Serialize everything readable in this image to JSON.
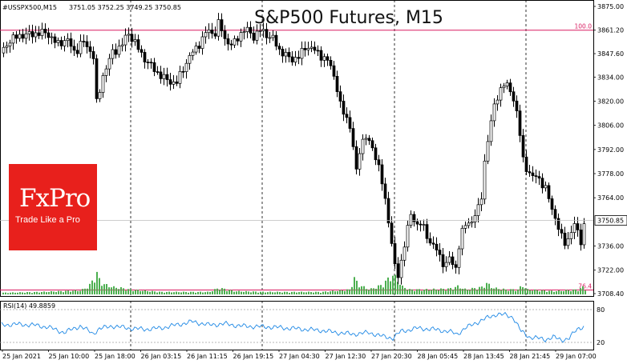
{
  "chart_data": [
    {
      "type": "candlestick",
      "symbol_label": "#USSPX500,M15",
      "ohlc_label": "3751.05 3752.25 3749.25 3750.85",
      "title": "S&P500 Futures, M15",
      "price_ticks": [
        "3875.00",
        "3861.20",
        "3847.60",
        "3834.00",
        "3820.00",
        "3806.00",
        "3792.00",
        "3778.00",
        "3764.00",
        "3750.85",
        "3736.00",
        "3722.00",
        "3708.40"
      ],
      "ylim": [
        3708.4,
        3875.0
      ],
      "current_price": "3750.85",
      "levels": [
        {
          "label": "100.0",
          "price": 3861.2,
          "color": "#d81b60"
        },
        {
          "label": "76.4",
          "price": 3710.5,
          "color": "#d81b60"
        }
      ],
      "session_starts": [
        "25 Jan 18:00",
        "26 Jan 19:15",
        "27 Jan 20:30",
        "28 Jan 21:45"
      ],
      "price_path": [
        [
          0,
          3848
        ],
        [
          10,
          3855
        ],
        [
          22,
          3858
        ],
        [
          40,
          3859
        ],
        [
          56,
          3860
        ],
        [
          62,
          3857
        ],
        [
          70,
          3853
        ],
        [
          82,
          3856
        ],
        [
          92,
          3848
        ],
        [
          102,
          3855
        ],
        [
          110,
          3850
        ],
        [
          116,
          3845
        ],
        [
          120,
          3810
        ],
        [
          124,
          3832
        ],
        [
          130,
          3838
        ],
        [
          138,
          3848
        ],
        [
          150,
          3852
        ],
        [
          158,
          3860
        ],
        [
          168,
          3853
        ],
        [
          178,
          3845
        ],
        [
          188,
          3840
        ],
        [
          198,
          3835
        ],
        [
          208,
          3832
        ],
        [
          218,
          3830
        ],
        [
          228,
          3840
        ],
        [
          238,
          3848
        ],
        [
          250,
          3855
        ],
        [
          258,
          3862
        ],
        [
          266,
          3858
        ],
        [
          272,
          3866
        ],
        [
          280,
          3855
        ],
        [
          288,
          3852
        ],
        [
          296,
          3858
        ],
        [
          306,
          3862
        ],
        [
          316,
          3857
        ],
        [
          324,
          3862
        ],
        [
          332,
          3858
        ],
        [
          340,
          3856
        ],
        [
          346,
          3850
        ],
        [
          354,
          3847
        ],
        [
          362,
          3844
        ],
        [
          372,
          3846
        ],
        [
          380,
          3852
        ],
        [
          390,
          3850
        ],
        [
          400,
          3846
        ],
        [
          410,
          3842
        ],
        [
          418,
          3830
        ],
        [
          424,
          3815
        ],
        [
          432,
          3810
        ],
        [
          438,
          3800
        ],
        [
          442,
          3775
        ],
        [
          448,
          3795
        ],
        [
          454,
          3800
        ],
        [
          460,
          3795
        ],
        [
          466,
          3790
        ],
        [
          472,
          3780
        ],
        [
          478,
          3765
        ],
        [
          484,
          3748
        ],
        [
          488,
          3735
        ],
        [
          492,
          3720
        ],
        [
          496,
          3718
        ],
        [
          500,
          3730
        ],
        [
          506,
          3745
        ],
        [
          512,
          3755
        ],
        [
          518,
          3748
        ],
        [
          524,
          3750
        ],
        [
          530,
          3742
        ],
        [
          536,
          3738
        ],
        [
          542,
          3735
        ],
        [
          548,
          3728
        ],
        [
          554,
          3725
        ],
        [
          560,
          3730
        ],
        [
          566,
          3720
        ],
        [
          572,
          3740
        ],
        [
          578,
          3748
        ],
        [
          586,
          3750
        ],
        [
          592,
          3755
        ],
        [
          598,
          3760
        ],
        [
          604,
          3790
        ],
        [
          610,
          3805
        ],
        [
          616,
          3820
        ],
        [
          622,
          3826
        ],
        [
          628,
          3830
        ],
        [
          634,
          3828
        ],
        [
          640,
          3820
        ],
        [
          646,
          3805
        ],
        [
          650,
          3788
        ],
        [
          656,
          3780
        ],
        [
          662,
          3775
        ],
        [
          668,
          3778
        ],
        [
          674,
          3772
        ],
        [
          680,
          3768
        ],
        [
          686,
          3760
        ],
        [
          692,
          3750
        ],
        [
          698,
          3742
        ],
        [
          704,
          3738
        ],
        [
          710,
          3742
        ],
        [
          716,
          3750
        ],
        [
          720,
          3743
        ],
        [
          724,
          3738
        ],
        [
          728,
          3750
        ]
      ],
      "volume_path": [
        [
          0,
          2
        ],
        [
          50,
          3
        ],
        [
          100,
          5
        ],
        [
          110,
          10
        ],
        [
          116,
          20
        ],
        [
          120,
          26
        ],
        [
          124,
          16
        ],
        [
          130,
          12
        ],
        [
          140,
          9
        ],
        [
          150,
          8
        ],
        [
          160,
          6
        ],
        [
          200,
          3
        ],
        [
          260,
          3
        ],
        [
          272,
          8
        ],
        [
          282,
          6
        ],
        [
          292,
          4
        ],
        [
          330,
          3
        ],
        [
          400,
          3
        ],
        [
          436,
          6
        ],
        [
          440,
          22
        ],
        [
          446,
          12
        ],
        [
          460,
          6
        ],
        [
          476,
          12
        ],
        [
          482,
          18
        ],
        [
          488,
          24
        ],
        [
          494,
          20
        ],
        [
          500,
          10
        ],
        [
          510,
          6
        ],
        [
          530,
          6
        ],
        [
          560,
          7
        ],
        [
          570,
          10
        ],
        [
          580,
          6
        ],
        [
          600,
          9
        ],
        [
          606,
          14
        ],
        [
          614,
          8
        ],
        [
          630,
          6
        ],
        [
          646,
          6
        ],
        [
          650,
          12
        ],
        [
          656,
          6
        ],
        [
          690,
          4
        ],
        [
          720,
          6
        ],
        [
          726,
          9
        ],
        [
          730,
          5
        ]
      ],
      "rsi": {
        "label": "RSI(14) 49.8859",
        "levels": [
          "80",
          "20"
        ],
        "path": [
          [
            0,
            52
          ],
          [
            20,
            53
          ],
          [
            40,
            52
          ],
          [
            60,
            48
          ],
          [
            80,
            38
          ],
          [
            100,
            50
          ],
          [
            116,
            36
          ],
          [
            124,
            45
          ],
          [
            140,
            50
          ],
          [
            160,
            46
          ],
          [
            180,
            44
          ],
          [
            200,
            46
          ],
          [
            220,
            52
          ],
          [
            240,
            58
          ],
          [
            260,
            52
          ],
          [
            280,
            54
          ],
          [
            300,
            50
          ],
          [
            320,
            49
          ],
          [
            340,
            48
          ],
          [
            360,
            46
          ],
          [
            380,
            44
          ],
          [
            400,
            42
          ],
          [
            420,
            38
          ],
          [
            440,
            35
          ],
          [
            460,
            38
          ],
          [
            480,
            30
          ],
          [
            490,
            28
          ],
          [
            500,
            40
          ],
          [
            520,
            46
          ],
          [
            540,
            44
          ],
          [
            560,
            40
          ],
          [
            570,
            35
          ],
          [
            580,
            46
          ],
          [
            600,
            60
          ],
          [
            620,
            72
          ],
          [
            630,
            70
          ],
          [
            640,
            66
          ],
          [
            650,
            40
          ],
          [
            660,
            30
          ],
          [
            670,
            28
          ],
          [
            680,
            25
          ],
          [
            690,
            30
          ],
          [
            700,
            24
          ],
          [
            710,
            28
          ],
          [
            716,
            38
          ],
          [
            722,
            46
          ],
          [
            728,
            49
          ]
        ]
      },
      "time_ticks": [
        "25 Jan 2021",
        "25 Jan 10:00",
        "25 Jan 18:00",
        "26 Jan 03:15",
        "26 Jan 11:15",
        "26 Jan 19:15",
        "27 Jan 04:30",
        "27 Jan 12:30",
        "27 Jan 20:30",
        "28 Jan 05:45",
        "28 Jan 13:45",
        "28 Jan 21:45",
        "29 Jan 07:00"
      ]
    }
  ],
  "logo": {
    "name": "FxPro",
    "tagline": "Trade Like a Pro"
  },
  "colors": {
    "level_line": "#d81b60",
    "volume": "#4caf50",
    "rsi_line": "#1e88e5",
    "logo_bg": "#e8201c"
  }
}
